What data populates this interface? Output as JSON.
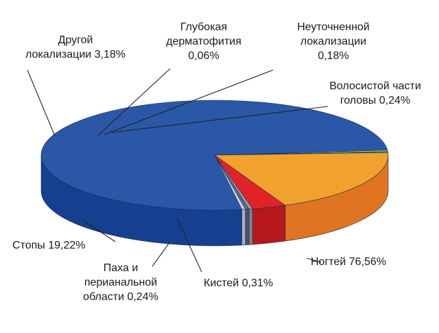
{
  "chart_data": {
    "type": "pie",
    "style": "3d",
    "unit": "%",
    "slices": [
      {
        "label": "Ногтей",
        "value": 76.56,
        "text_lines": [
          "Ногтей 76,56%"
        ],
        "color": "#2a58a6",
        "side_color": "#15408f"
      },
      {
        "label": "Кистей",
        "value": 0.31,
        "text_lines": [
          "Кистей 0,31%"
        ],
        "color": "#f5ec62",
        "side_color": "#e8d82a"
      },
      {
        "label": "Паха и перианальной области",
        "value": 0.24,
        "text_lines": [
          "Паха и",
          "перианальной",
          "области 0,24%"
        ],
        "color": "#2f9a55",
        "side_color": "#1e7a3e"
      },
      {
        "label": "Стопы",
        "value": 19.22,
        "text_lines": [
          "Стопы 19,22%"
        ],
        "color": "#f1a12e",
        "side_color": "#df7422"
      },
      {
        "label": "Другой локализации",
        "value": 3.18,
        "text_lines": [
          "Другой",
          "локализации 3,18%"
        ],
        "color": "#e32227",
        "side_color": "#b5181c"
      },
      {
        "label": "Глубокая дерматофития",
        "value": 0.06,
        "text_lines": [
          "Глубокая",
          "дерматофития",
          "0,06%"
        ],
        "color": "#9a9ea8",
        "side_color": "#7c808a"
      },
      {
        "label": "Неуточненной локализации",
        "value": 0.18,
        "text_lines": [
          "Неуточненной",
          "локализации",
          "0,18%"
        ],
        "color": "#5c6a8a",
        "side_color": "#45516e"
      },
      {
        "label": "Волосистой части головы",
        "value": 0.24,
        "text_lines": [
          "Волосистой части",
          "головы 0,24%"
        ],
        "color": "#c9ced8",
        "side_color": "#a9afbb"
      }
    ]
  }
}
